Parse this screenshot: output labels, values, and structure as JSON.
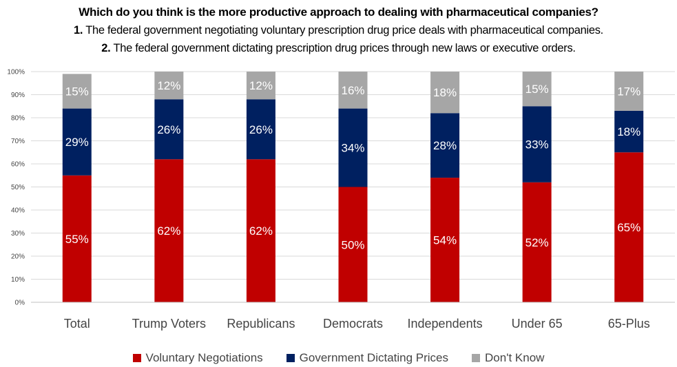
{
  "title": {
    "question": "Which do you think is the more productive approach to dealing with pharmaceutical companies?",
    "option1_num": "1.",
    "option1_text": " The federal government negotiating voluntary prescription drug price deals with pharmaceutical companies.",
    "option2_num": "2.",
    "option2_text": " The federal government dictating prescription drug prices through new laws or executive orders."
  },
  "chart_data": {
    "type": "bar",
    "stacked": true,
    "categories": [
      "Total",
      "Trump Voters",
      "Republicans",
      "Democrats",
      "Independents",
      "Under 65",
      "65-Plus"
    ],
    "series": [
      {
        "name": "Voluntary Negotiations",
        "color": "#c00000",
        "values": [
          55,
          62,
          62,
          50,
          54,
          52,
          65
        ]
      },
      {
        "name": "Government Dictating Prices",
        "color": "#002060",
        "values": [
          29,
          26,
          26,
          34,
          28,
          33,
          18
        ]
      },
      {
        "name": "Don't Know",
        "color": "#a6a6a6",
        "values": [
          15,
          12,
          12,
          16,
          18,
          15,
          17
        ]
      }
    ],
    "yticks": [
      "0%",
      "10%",
      "20%",
      "30%",
      "40%",
      "50%",
      "60%",
      "70%",
      "80%",
      "90%",
      "100%"
    ],
    "ylim": [
      0,
      100
    ],
    "grid": true,
    "legend": "bottom",
    "value_format": "%"
  }
}
